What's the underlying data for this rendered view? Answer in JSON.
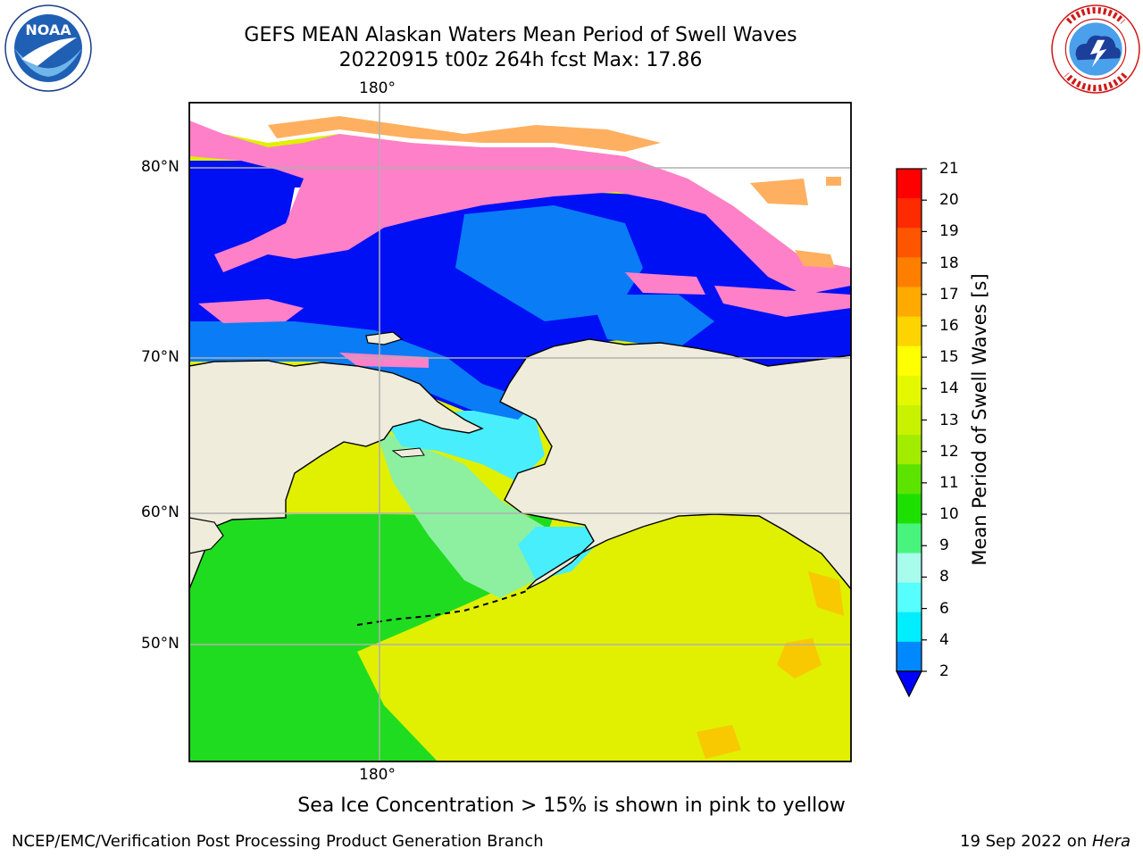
{
  "header": {
    "title_line1": "GEFS MEAN Alaskan Waters Mean Period of Swell Waves",
    "title_line2": "20220915 t00z 264h fcst   Max: 17.86"
  },
  "logos": {
    "left": {
      "icon": "noaa-logo",
      "text": "NOAA"
    },
    "right": {
      "icon": "national-weather-service-logo"
    }
  },
  "axes": {
    "lon_top": "180°",
    "lon_bottom": "180°",
    "lat_labels": [
      "80°N",
      "70°N",
      "60°N",
      "50°N"
    ]
  },
  "colorbar": {
    "label": "Mean Period of Swell Waves [s]",
    "ticks": [
      "21",
      "20",
      "19",
      "18",
      "17",
      "16",
      "15",
      "14",
      "13",
      "12",
      "11",
      "10",
      "9",
      "8",
      "6",
      "4",
      "2"
    ],
    "colors": [
      "#fe0000",
      "#fe2a00",
      "#fe5500",
      "#fe7f00",
      "#feaa00",
      "#fed400",
      "#feff00",
      "#e4f900",
      "#c8f200",
      "#a2ec00",
      "#5ce400",
      "#1ee000",
      "#48f47c",
      "#a8fcec",
      "#56fefe",
      "#00eefe",
      "#0088fe"
    ],
    "underflow_color": "#0000fe"
  },
  "caption": "Sea Ice Concentration > 15% is shown in pink to yellow",
  "footer": {
    "left": "NCEP/EMC/Verification Post Processing Product Generation Branch",
    "right_date": "19 Sep 2022 on ",
    "right_host": "Hera"
  },
  "colors": {
    "land": "#efecdc",
    "deep_blue": "#0010f5",
    "mid_blue": "#0a7cf5",
    "cyan": "#48eefc",
    "green": "#20dc20",
    "yellow": "#e0f000",
    "orange": "#f8c800",
    "ice_pink": "#fe80c8",
    "ice_orange": "#feb060"
  }
}
